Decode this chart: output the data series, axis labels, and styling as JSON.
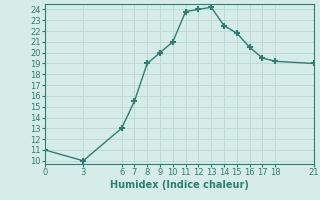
{
  "x": [
    0,
    3,
    6,
    7,
    8,
    9,
    10,
    11,
    12,
    13,
    14,
    15,
    16,
    17,
    18,
    21
  ],
  "y": [
    11,
    10,
    13,
    15.5,
    19,
    20,
    21,
    23.8,
    24,
    24.2,
    22.5,
    21.8,
    20.5,
    19.5,
    19.2,
    19
  ],
  "xlabel": "Humidex (Indice chaleur)",
  "xlim": [
    0,
    21
  ],
  "ylim": [
    10,
    24.5
  ],
  "yticks": [
    10,
    11,
    12,
    13,
    14,
    15,
    16,
    17,
    18,
    19,
    20,
    21,
    22,
    23,
    24
  ],
  "xticks": [
    0,
    3,
    6,
    7,
    8,
    9,
    10,
    11,
    12,
    13,
    14,
    15,
    16,
    17,
    18,
    21
  ],
  "line_color": "#2d7f72",
  "marker": "+",
  "bg_color": "#d6ece8",
  "grid_color": "#b8d8d2",
  "label_fontsize": 7,
  "tick_fontsize": 6
}
